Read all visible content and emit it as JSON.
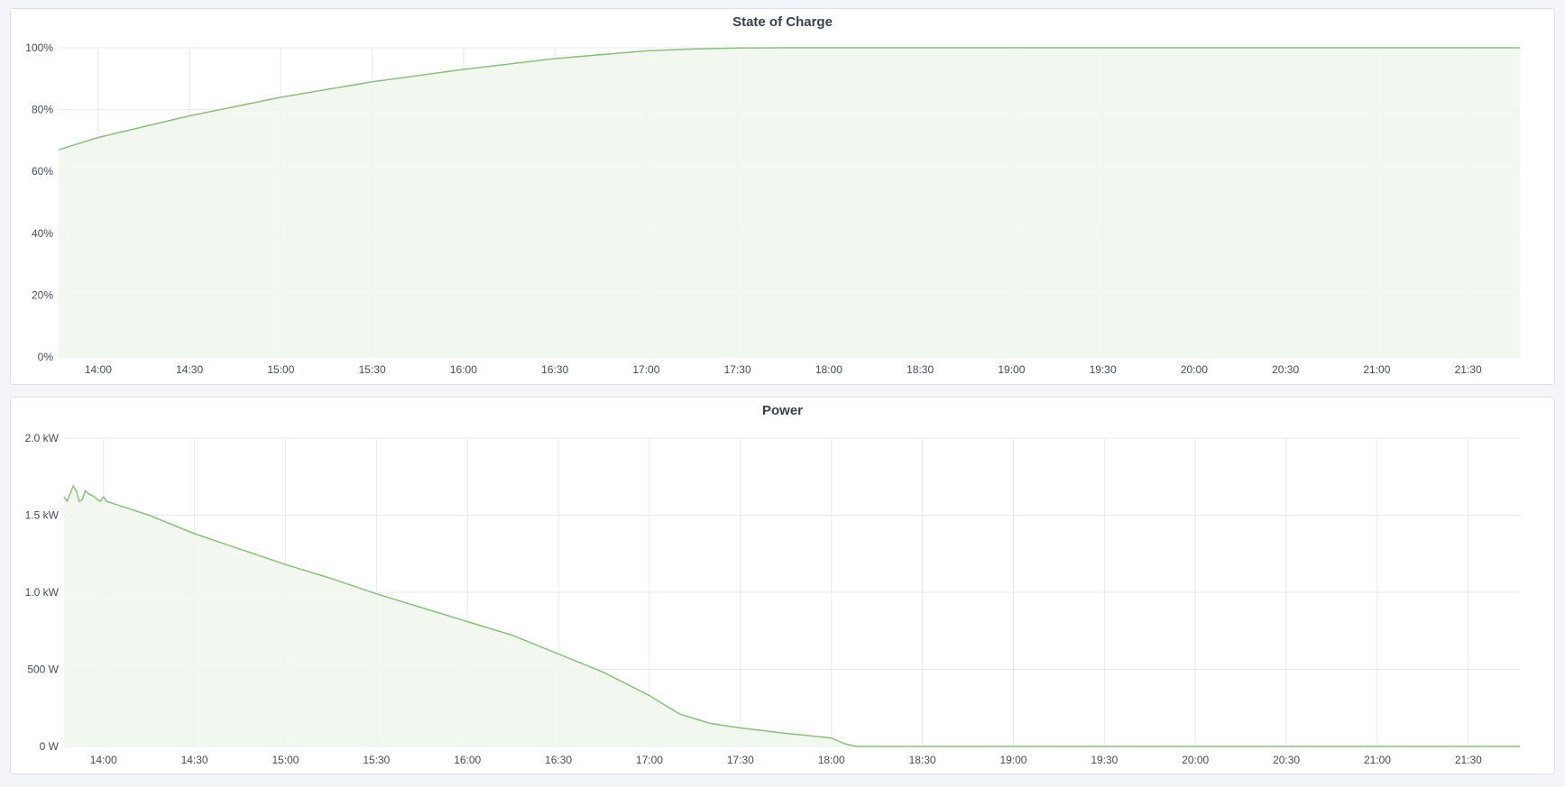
{
  "chart_data": [
    {
      "type": "area",
      "title": "State of Charge",
      "x_unit": "time",
      "xlim": [
        "13:47",
        "21:47"
      ],
      "x_ticks": [
        "14:00",
        "14:30",
        "15:00",
        "15:30",
        "16:00",
        "16:30",
        "17:00",
        "17:30",
        "18:00",
        "18:30",
        "19:00",
        "19:30",
        "20:00",
        "20:30",
        "21:00",
        "21:30"
      ],
      "ylim": [
        0,
        100
      ],
      "y_ticks": [
        0,
        20,
        40,
        60,
        80,
        100
      ],
      "y_tick_labels": [
        "0%",
        "20%",
        "40%",
        "60%",
        "80%",
        "100%"
      ],
      "grid": true,
      "color": "#8ac17a",
      "fill_color": "#f1f7ee",
      "series": [
        {
          "x": [
            "13:47",
            "14:00",
            "14:30",
            "15:00",
            "15:30",
            "16:00",
            "16:30",
            "17:00",
            "17:15",
            "17:30",
            "17:45",
            "18:00",
            "21:47"
          ],
          "y": [
            67,
            71,
            78,
            84,
            89,
            93,
            96.5,
            99,
            99.6,
            99.9,
            100,
            100,
            100
          ]
        }
      ]
    },
    {
      "type": "area",
      "title": "Power",
      "x_unit": "time",
      "xlim": [
        "13:47",
        "21:47"
      ],
      "x_ticks": [
        "14:00",
        "14:30",
        "15:00",
        "15:30",
        "16:00",
        "16:30",
        "17:00",
        "17:30",
        "18:00",
        "18:30",
        "19:00",
        "19:30",
        "20:00",
        "20:30",
        "21:00",
        "21:30"
      ],
      "ylim": [
        0,
        2000
      ],
      "y_ticks": [
        0,
        500,
        1000,
        1500,
        2000
      ],
      "y_tick_labels": [
        "0 W",
        "500 W",
        "1.0 kW",
        "1.5 kW",
        "2.0 kW"
      ],
      "grid": true,
      "color": "#8ac17a",
      "fill_color": "#f1f7ee",
      "series": [
        {
          "x": [
            "13:47",
            "13:48",
            "13:49",
            "13:50",
            "13:51",
            "13:52",
            "13:53",
            "13:54",
            "13:55",
            "13:56",
            "13:57",
            "13:58",
            "13:59",
            "14:00",
            "14:01",
            "14:15",
            "14:30",
            "14:45",
            "15:00",
            "15:15",
            "15:30",
            "15:45",
            "16:00",
            "16:15",
            "16:30",
            "16:45",
            "17:00",
            "17:10",
            "17:20",
            "17:30",
            "17:45",
            "18:00",
            "18:04",
            "18:08",
            "21:47"
          ],
          "y": [
            1620,
            1590,
            1640,
            1690,
            1660,
            1590,
            1600,
            1660,
            1640,
            1630,
            1620,
            1600,
            1590,
            1620,
            1590,
            1500,
            1380,
            1280,
            1180,
            1090,
            990,
            900,
            810,
            720,
            600,
            480,
            330,
            210,
            150,
            120,
            85,
            55,
            20,
            0,
            0
          ]
        }
      ]
    }
  ]
}
